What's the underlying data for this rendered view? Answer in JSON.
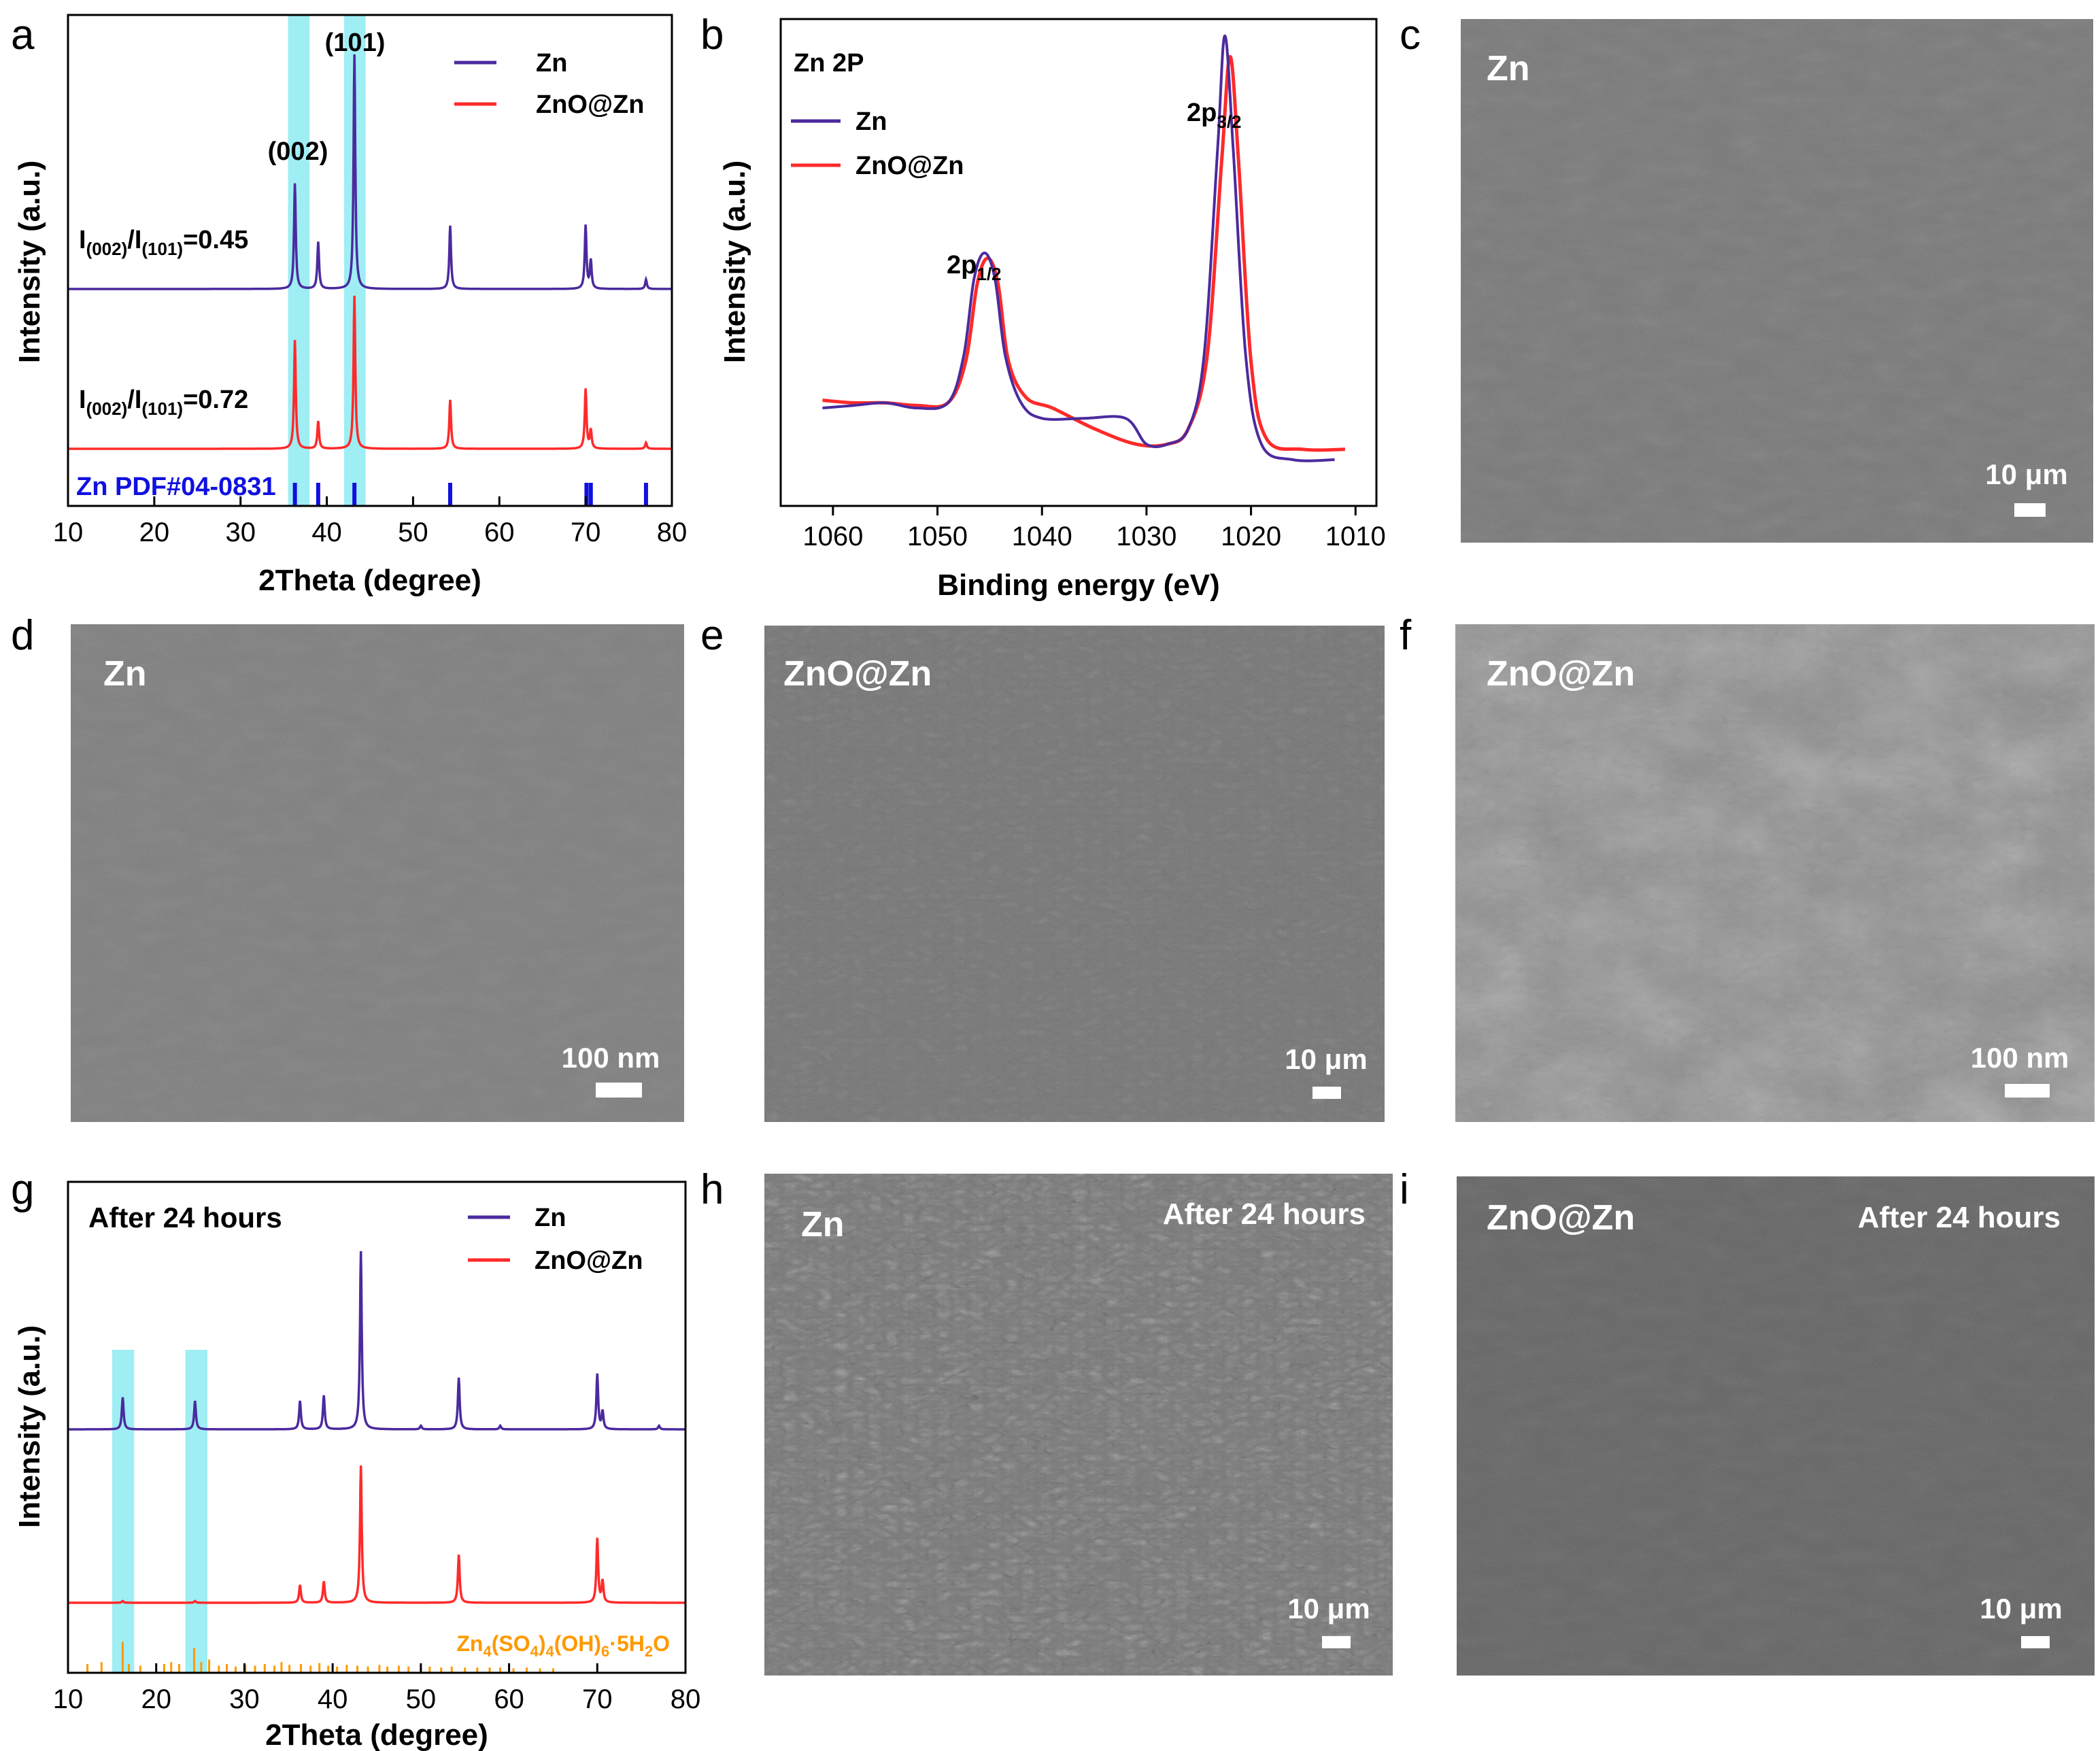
{
  "panel_labels": [
    "a",
    "b",
    "c",
    "d",
    "e",
    "f",
    "g",
    "h",
    "i"
  ],
  "colors": {
    "zn": "#4b2a9e",
    "zno": "#ff2a2a",
    "ref_blue": "#1010e0",
    "ref_orange": "#ff9900",
    "highlight": "#7fe8f0"
  },
  "chart_data": [
    {
      "type": "line",
      "panel": "a",
      "xlabel": "2Theta (degree)",
      "ylabel": "Intensity (a.u.)",
      "xlim": [
        10,
        80
      ],
      "xticks": [
        "10",
        "20",
        "30",
        "40",
        "50",
        "60",
        "70",
        "80"
      ],
      "highlight_ranges": [
        [
          35.5,
          38.0
        ],
        [
          42.0,
          44.5
        ]
      ],
      "peak_labels": [
        "(002)",
        "(101)"
      ],
      "annotations": [
        {
          "main": "I",
          "sub1": "(002)",
          "mid": "/I",
          "sub2": "(101)",
          "end": "=0.45"
        },
        {
          "main": "I",
          "sub1": "(002)",
          "mid": "/I",
          "sub2": "(101)",
          "end": "=0.72"
        }
      ],
      "reference_label": "Zn PDF#04-0831",
      "reference_peaks": [
        36.3,
        39.0,
        43.2,
        54.3,
        70.1,
        70.6,
        77.0
      ],
      "series": [
        {
          "name": "Zn",
          "peaks": [
            [
              36.3,
              0.45
            ],
            [
              39.0,
              0.2
            ],
            [
              43.2,
              1.0
            ],
            [
              54.3,
              0.27
            ],
            [
              70.0,
              0.27
            ],
            [
              70.6,
              0.12
            ],
            [
              77.0,
              0.04
            ]
          ]
        },
        {
          "name": "ZnO@Zn",
          "peaks": [
            [
              36.3,
              0.71
            ],
            [
              39.0,
              0.18
            ],
            [
              43.2,
              1.0
            ],
            [
              54.3,
              0.32
            ],
            [
              70.0,
              0.39
            ],
            [
              70.6,
              0.12
            ],
            [
              77.0,
              0.04
            ]
          ]
        }
      ]
    },
    {
      "type": "line",
      "panel": "b",
      "title": "Zn 2P",
      "xlabel": "Binding energy (eV)",
      "ylabel": "Intensity (a.u.)",
      "xlim": [
        1065,
        1008
      ],
      "xticks": [
        "1060",
        "1050",
        "1040",
        "1030",
        "1020",
        "1010"
      ],
      "peak_labels": [
        {
          "base": "2p",
          "sub": "1/2",
          "x": 1045.5
        },
        {
          "base": "2p",
          "sub": "3/2",
          "x": 1022.4
        }
      ],
      "series": [
        {
          "name": "Zn",
          "x": [
            1061,
            1058,
            1055,
            1052,
            1049,
            1047.5,
            1046.5,
            1045.5,
            1044.5,
            1043.5,
            1042,
            1040,
            1036,
            1032,
            1030,
            1028,
            1026,
            1024.5,
            1023.2,
            1022.5,
            1021.7,
            1020.5,
            1019,
            1016,
            1012
          ],
          "y": [
            0.15,
            0.155,
            0.16,
            0.15,
            0.16,
            0.25,
            0.4,
            0.45,
            0.4,
            0.25,
            0.16,
            0.13,
            0.13,
            0.13,
            0.08,
            0.08,
            0.11,
            0.25,
            0.65,
            0.87,
            0.65,
            0.25,
            0.08,
            0.05,
            0.05
          ]
        },
        {
          "name": "ZnO@Zn",
          "x": [
            1061,
            1058,
            1055,
            1052,
            1049,
            1047.3,
            1046.2,
            1045.2,
            1044.2,
            1043.2,
            1041.5,
            1039,
            1035,
            1031,
            1028,
            1026,
            1024.2,
            1022.8,
            1022.0,
            1021.2,
            1020,
            1018.5,
            1015,
            1011
          ],
          "y": [
            0.165,
            0.16,
            0.16,
            0.155,
            0.16,
            0.24,
            0.39,
            0.44,
            0.39,
            0.24,
            0.17,
            0.15,
            0.11,
            0.08,
            0.08,
            0.11,
            0.25,
            0.63,
            0.83,
            0.63,
            0.24,
            0.09,
            0.07,
            0.07
          ]
        }
      ]
    },
    {
      "type": "line",
      "panel": "g",
      "title": "After 24 hours",
      "xlabel": "2Theta (degree)",
      "ylabel": "Intensity (a.u.)",
      "xlim": [
        10,
        80
      ],
      "xticks": [
        "10",
        "20",
        "30",
        "40",
        "50",
        "60",
        "70",
        "80"
      ],
      "highlight_ranges": [
        [
          15.0,
          17.5
        ],
        [
          23.3,
          25.8
        ]
      ],
      "reference_label": {
        "parts": [
          [
            "Zn",
            ""
          ],
          [
            "4",
            "sub"
          ],
          [
            "(SO",
            ""
          ],
          [
            "4",
            "sub"
          ],
          [
            ")",
            ""
          ],
          [
            "4",
            "sub"
          ],
          [
            "(OH)",
            ""
          ],
          [
            "6",
            "sub"
          ],
          [
            "·5H",
            ""
          ],
          [
            "2",
            "sub"
          ],
          [
            "O",
            ""
          ]
        ]
      },
      "reference_peaks": [
        [
          12.2,
          0.1
        ],
        [
          13.8,
          0.12
        ],
        [
          16.2,
          0.35
        ],
        [
          16.9,
          0.1
        ],
        [
          18.2,
          0.08
        ],
        [
          20.9,
          0.1
        ],
        [
          21.7,
          0.12
        ],
        [
          22.6,
          0.1
        ],
        [
          24.3,
          0.28
        ],
        [
          25.1,
          0.12
        ],
        [
          26.0,
          0.15
        ],
        [
          27.1,
          0.08
        ],
        [
          28.0,
          0.1
        ],
        [
          29.0,
          0.07
        ],
        [
          30.1,
          0.09
        ],
        [
          31.2,
          0.08
        ],
        [
          32.3,
          0.1
        ],
        [
          33.4,
          0.08
        ],
        [
          34.2,
          0.12
        ],
        [
          35.1,
          0.09
        ],
        [
          36.4,
          0.1
        ],
        [
          37.5,
          0.08
        ],
        [
          38.5,
          0.11
        ],
        [
          39.5,
          0.08
        ],
        [
          40.5,
          0.07
        ],
        [
          41.6,
          0.09
        ],
        [
          42.8,
          0.08
        ],
        [
          44.0,
          0.07
        ],
        [
          45.3,
          0.09
        ],
        [
          46.2,
          0.07
        ],
        [
          47.5,
          0.08
        ],
        [
          48.6,
          0.07
        ],
        [
          50.0,
          0.06
        ],
        [
          51.0,
          0.07
        ],
        [
          52.3,
          0.06
        ],
        [
          53.5,
          0.07
        ],
        [
          55.0,
          0.06
        ],
        [
          56.4,
          0.06
        ],
        [
          57.8,
          0.06
        ],
        [
          59.0,
          0.06
        ],
        [
          60.5,
          0.05
        ],
        [
          62.0,
          0.06
        ],
        [
          63.5,
          0.05
        ],
        [
          65.0,
          0.05
        ]
      ],
      "series": [
        {
          "name": "Zn",
          "peaks": [
            [
              16.2,
              0.18
            ],
            [
              24.4,
              0.16
            ],
            [
              36.3,
              0.16
            ],
            [
              39.0,
              0.19
            ],
            [
              43.2,
              1.0
            ],
            [
              50.0,
              0.02
            ],
            [
              54.3,
              0.29
            ],
            [
              59.0,
              0.02
            ],
            [
              70.0,
              0.31
            ],
            [
              70.6,
              0.1
            ],
            [
              77.0,
              0.02
            ]
          ]
        },
        {
          "name": "ZnO@Zn",
          "peaks": [
            [
              16.2,
              0.01
            ],
            [
              24.4,
              0.01
            ],
            [
              36.3,
              0.1
            ],
            [
              39.0,
              0.12
            ],
            [
              43.2,
              0.77
            ],
            [
              54.3,
              0.27
            ],
            [
              70.0,
              0.36
            ],
            [
              70.6,
              0.12
            ]
          ]
        }
      ]
    }
  ],
  "sem_images": [
    {
      "panel": "c",
      "label": "Zn",
      "subtitle": "",
      "scale": "10 μm"
    },
    {
      "panel": "d",
      "label": "Zn",
      "subtitle": "",
      "scale": "100 nm"
    },
    {
      "panel": "e",
      "label": "ZnO@Zn",
      "subtitle": "",
      "scale": "10 μm"
    },
    {
      "panel": "f",
      "label": "ZnO@Zn",
      "subtitle": "",
      "scale": "100 nm"
    },
    {
      "panel": "h",
      "label": "Zn",
      "subtitle": "After 24 hours",
      "scale": "10 μm"
    },
    {
      "panel": "i",
      "label": "ZnO@Zn",
      "subtitle": "After 24 hours",
      "scale": "10 μm"
    }
  ]
}
